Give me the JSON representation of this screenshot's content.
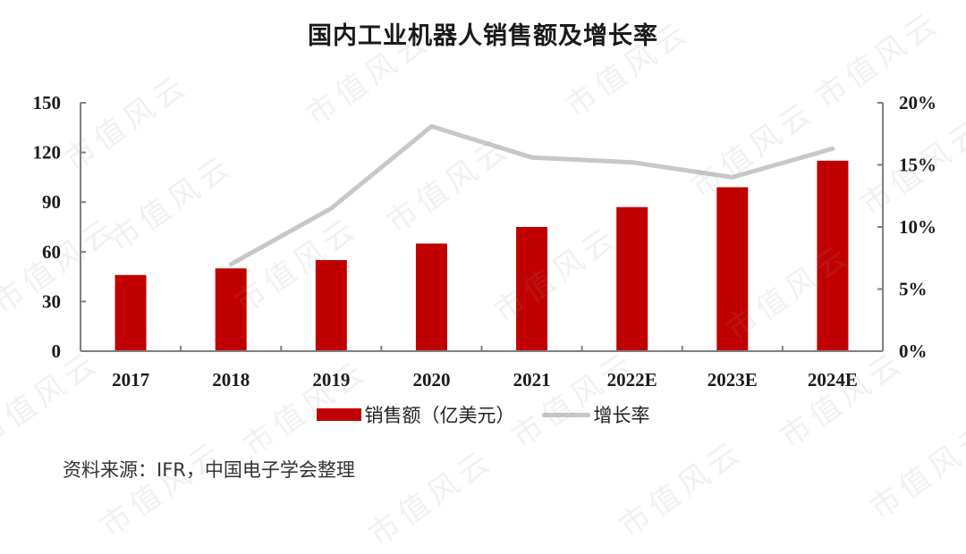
{
  "chart_data": {
    "type": "bar+line",
    "title": "国内工业机器人销售额及增长率",
    "categories": [
      "2017",
      "2018",
      "2019",
      "2020",
      "2021",
      "2022E",
      "2023E",
      "2024E"
    ],
    "series": [
      {
        "name": "销售额（亿美元）",
        "type": "bar",
        "axis": "left",
        "color": "#c00000",
        "values": [
          46,
          50,
          55,
          65,
          75,
          87,
          99,
          115
        ]
      },
      {
        "name": "增长率",
        "type": "line",
        "axis": "right",
        "color": "#c8c8c8",
        "values": [
          null,
          7.0,
          11.5,
          18.1,
          15.6,
          15.2,
          14.0,
          16.3
        ]
      }
    ],
    "left_axis": {
      "ticks": [
        "0",
        "30",
        "60",
        "90",
        "120",
        "150"
      ],
      "min": 0,
      "max": 150
    },
    "right_axis": {
      "ticks": [
        "0%",
        "5%",
        "10%",
        "15%",
        "20%"
      ],
      "min": 0,
      "max": 20
    },
    "xlabel": "",
    "ylabel": "",
    "grid": false,
    "legend_position": "bottom"
  },
  "header": {
    "title": "国内工业机器人销售额及增长率"
  },
  "legend": {
    "bar_label": "销售额（亿美元）",
    "line_label": "增长率"
  },
  "footer": {
    "source": "资料来源：IFR，中国电子学会整理"
  },
  "watermark": {
    "text": "市值风云"
  }
}
